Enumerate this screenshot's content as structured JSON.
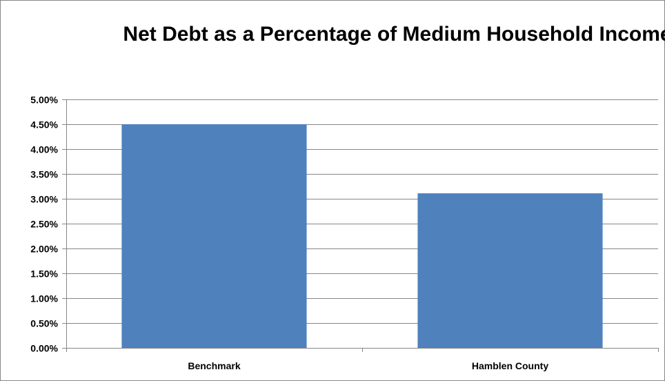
{
  "chart_data": {
    "type": "bar",
    "title": "Net Debt as a Percentage of Medium Household Income",
    "categories": [
      "Benchmark",
      "Hamblen County"
    ],
    "values": [
      4.5,
      3.11
    ],
    "value_unit": "%",
    "ylim": [
      0,
      5
    ],
    "ytick_step": 0.5,
    "ytick_labels": [
      "0.00%",
      "0.50%",
      "1.00%",
      "1.50%",
      "2.00%",
      "2.50%",
      "3.00%",
      "3.50%",
      "4.00%",
      "4.50%",
      "5.00%"
    ],
    "xlabel": "",
    "ylabel": "",
    "grid": true,
    "legend": "none",
    "bar_color": "#4f81bd",
    "grid_color": "#868686"
  }
}
